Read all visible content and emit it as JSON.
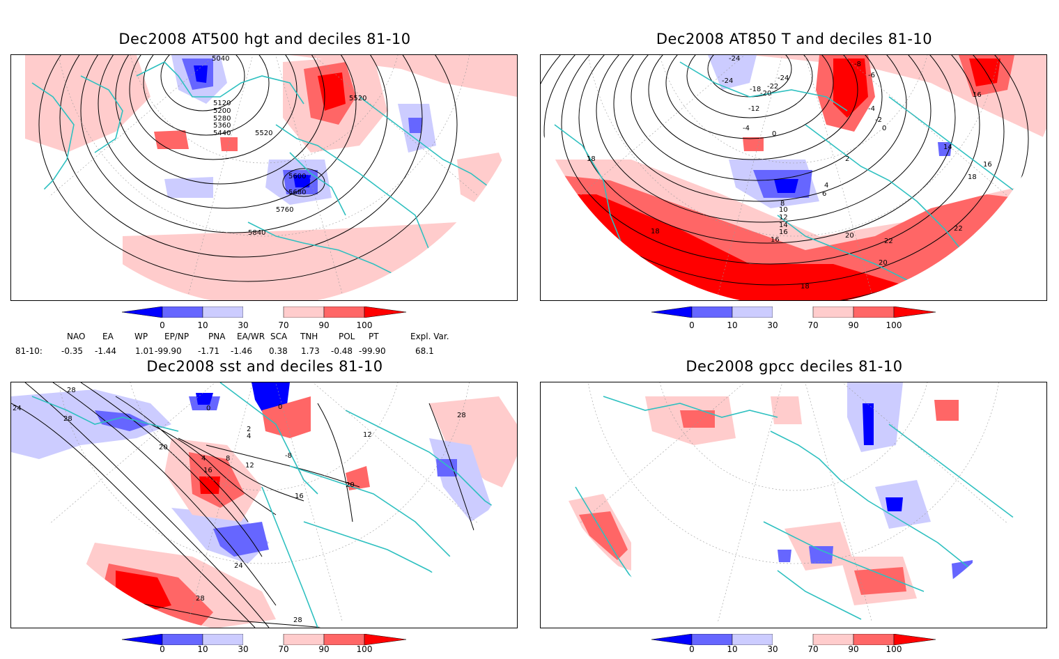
{
  "colors": {
    "deep_blue": "#0000ff",
    "mid_blue": "#6666ff",
    "light_blue": "#ccccff",
    "light_red": "#ffcccc",
    "mid_red": "#ff6666",
    "deep_red": "#ff0000",
    "coast": "#2ec0c0",
    "contour": "#000000"
  },
  "colorbar": {
    "labels": [
      "0",
      "10",
      "30",
      "70",
      "90",
      "100"
    ]
  },
  "panels": [
    {
      "title": "Dec2008 AT500 hgt and deciles 81-10",
      "contour_labels": [
        "5040",
        "5120",
        "5200",
        "5280",
        "5360",
        "5440",
        "5520",
        "5520",
        "5600",
        "5680",
        "5760",
        "5840"
      ]
    },
    {
      "title": "Dec2008 AT850 T and deciles 81-10",
      "contour_labels": [
        "-24",
        "-24",
        "-24",
        "-22",
        "-20",
        "-18",
        "-12",
        "-8",
        "-6",
        "-4",
        "-4",
        "-2",
        "0",
        "0",
        "2",
        "4",
        "6",
        "8",
        "10",
        "12",
        "14",
        "14",
        "16",
        "16",
        "16",
        "16",
        "18",
        "18",
        "18",
        "18",
        "20",
        "20",
        "22",
        "22"
      ]
    },
    {
      "title": "Dec2008 sst and deciles 81-10",
      "contour_labels": [
        "28",
        "24",
        "28",
        "0",
        "0",
        "2",
        "4",
        "4",
        "8",
        "12",
        "16",
        "16",
        "20",
        "20",
        "24",
        "28",
        "28",
        "28",
        "-8",
        "12"
      ]
    },
    {
      "title": "Dec2008 gpcc deciles 81-10",
      "contour_labels": []
    }
  ],
  "indices": {
    "headers": [
      "NAO",
      "EA",
      "WP",
      "EP/NP",
      "PNA",
      "EA/WR",
      "SCA",
      "TNH",
      "POL",
      "PT",
      "Expl. Var."
    ],
    "row_label": "81-10:",
    "values": [
      "-0.35",
      "-1.44",
      "1.01",
      "-99.90",
      "-1.71",
      "-1.46",
      "0.38",
      "1.73",
      "-0.48",
      "-99.90",
      "68.1"
    ]
  }
}
